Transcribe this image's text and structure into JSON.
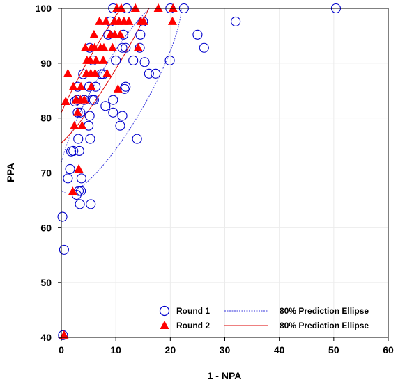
{
  "chart_data": {
    "type": "scatter",
    "title": "",
    "xlabel": "1 - NPA",
    "ylabel": "PPA",
    "xlim": [
      0,
      60
    ],
    "ylim": [
      40,
      100
    ],
    "xticks": [
      0,
      10,
      20,
      30,
      40,
      50,
      60
    ],
    "yticks": [
      40,
      50,
      60,
      70,
      80,
      90,
      100
    ],
    "grid": true,
    "legend_position": "bottom-right",
    "series": [
      {
        "name": "Round 1",
        "marker": "open-circle",
        "color": "#0000cc",
        "points": [
          [
            0.3,
            40.4
          ],
          [
            0.2,
            62
          ],
          [
            0.5,
            56
          ],
          [
            1.2,
            69
          ],
          [
            1.6,
            70.7
          ],
          [
            1.8,
            73.9
          ],
          [
            2.2,
            74
          ],
          [
            2.5,
            83
          ],
          [
            2.8,
            66
          ],
          [
            3.1,
            76.2
          ],
          [
            3.3,
            74
          ],
          [
            3.2,
            66.7
          ],
          [
            3.4,
            64.3
          ],
          [
            3.6,
            66.7
          ],
          [
            3.7,
            69
          ],
          [
            3,
            81
          ],
          [
            3.5,
            81
          ],
          [
            3,
            85.7
          ],
          [
            2.9,
            83.3
          ],
          [
            4.2,
            83.3
          ],
          [
            4,
            88
          ],
          [
            5.2,
            92.8
          ],
          [
            5.1,
            85.7
          ],
          [
            5.2,
            80.4
          ],
          [
            5,
            78.6
          ],
          [
            5.3,
            76.2
          ],
          [
            5.4,
            64.3
          ],
          [
            5.7,
            83.3
          ],
          [
            6,
            83.3
          ],
          [
            6.3,
            85.7
          ],
          [
            5.8,
            90.5
          ],
          [
            7.3,
            88
          ],
          [
            7.7,
            88
          ],
          [
            8.1,
            82.2
          ],
          [
            8.6,
            95.2
          ],
          [
            9.5,
            83.3
          ],
          [
            9.5,
            81
          ],
          [
            10,
            90.5
          ],
          [
            9,
            97.6
          ],
          [
            10.8,
            78.6
          ],
          [
            11.2,
            80.4
          ],
          [
            11.6,
            85.3
          ],
          [
            11.8,
            85.7
          ],
          [
            11.2,
            92.8
          ],
          [
            11.8,
            92.8
          ],
          [
            11.4,
            95.2
          ],
          [
            13.2,
            90.5
          ],
          [
            13.9,
            76.2
          ],
          [
            14.5,
            95.2
          ],
          [
            14.4,
            92.8
          ],
          [
            15,
            97.6
          ],
          [
            15.3,
            90.2
          ],
          [
            16.1,
            88.1
          ],
          [
            17.3,
            88.1
          ],
          [
            19.9,
            90.5
          ],
          [
            20,
            100
          ],
          [
            22.5,
            100
          ],
          [
            25,
            95.2
          ],
          [
            26.2,
            92.8
          ],
          [
            32,
            97.6
          ],
          [
            50.4,
            100
          ],
          [
            9.5,
            100
          ],
          [
            12,
            100
          ]
        ]
      },
      {
        "name": "Round 2",
        "marker": "filled-triangle",
        "color": "#ff0000",
        "points": [
          [
            0.5,
            40.4
          ],
          [
            0.8,
            83
          ],
          [
            1.2,
            88.1
          ],
          [
            2.1,
            66.6
          ],
          [
            2.2,
            85.7
          ],
          [
            2.4,
            78.6
          ],
          [
            2.7,
            83.3
          ],
          [
            3,
            81
          ],
          [
            3.2,
            70.7
          ],
          [
            3.5,
            83.3
          ],
          [
            3.6,
            85.7
          ],
          [
            3.8,
            78.6
          ],
          [
            4.2,
            83.3
          ],
          [
            4.4,
            92.8
          ],
          [
            4.6,
            88.1
          ],
          [
            4.7,
            90.5
          ],
          [
            5.4,
            88.1
          ],
          [
            5.3,
            90.5
          ],
          [
            5.5,
            92.8
          ],
          [
            5.5,
            85.7
          ],
          [
            6.1,
            92.8
          ],
          [
            6,
            95.2
          ],
          [
            6.2,
            88.1
          ],
          [
            6.4,
            90.5
          ],
          [
            7,
            97.6
          ],
          [
            7.2,
            92.8
          ],
          [
            7.8,
            92.8
          ],
          [
            7.7,
            90.5
          ],
          [
            8.2,
            97.6
          ],
          [
            8.4,
            88.1
          ],
          [
            9,
            95.2
          ],
          [
            9.4,
            92.8
          ],
          [
            9.8,
            95.2
          ],
          [
            10.2,
            100
          ],
          [
            10.4,
            85.3
          ],
          [
            10.6,
            97.6
          ],
          [
            10.8,
            95.2
          ],
          [
            11,
            100
          ],
          [
            11.5,
            97.6
          ],
          [
            12.4,
            97.6
          ],
          [
            13.6,
            100
          ],
          [
            14.1,
            92.8
          ],
          [
            14.6,
            97.6
          ],
          [
            15.1,
            97.6
          ],
          [
            17.8,
            100
          ],
          [
            20.5,
            100
          ],
          [
            20.4,
            97.6
          ],
          [
            9.8,
            97.6
          ]
        ]
      }
    ],
    "ellipses": [
      {
        "name": "80% Prediction Ellipse",
        "series": "Round 1",
        "color": "#3333dd",
        "style": "dashed",
        "center": [
          10.8,
          84.5
        ],
        "a": 20.8,
        "b": 4.9,
        "angle_deg": 60
      },
      {
        "name": "80% Prediction Ellipse",
        "series": "Round 2",
        "color": "#dd0000",
        "style": "solid",
        "center": [
          8.4,
          91.3
        ],
        "a": 19.2,
        "b": 2.6,
        "angle_deg": 59
      }
    ],
    "legend": [
      {
        "series_label": "Round 1",
        "ellipse_label": "80% Prediction Ellipse"
      },
      {
        "series_label": "Round 2",
        "ellipse_label": "80% Prediction Ellipse"
      }
    ]
  }
}
